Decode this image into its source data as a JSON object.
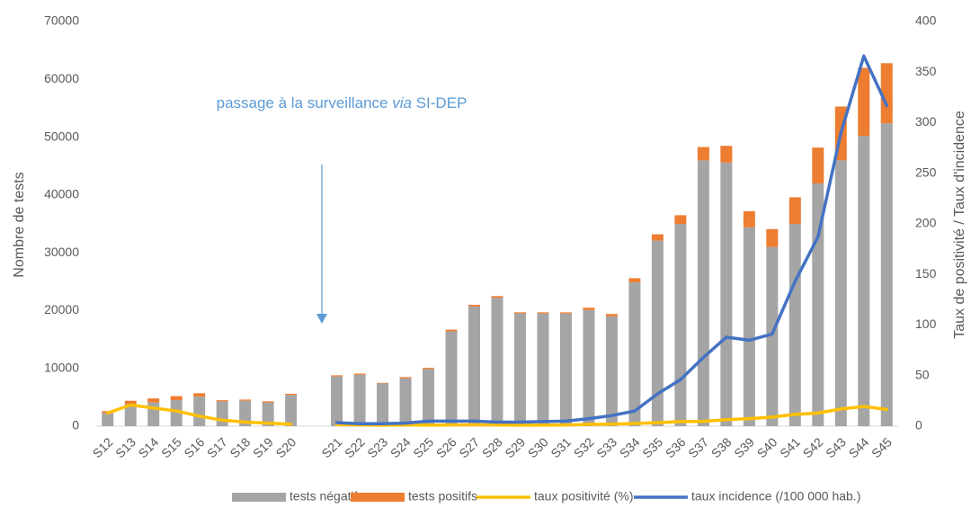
{
  "chart_data": {
    "type": "bar",
    "annotation": [
      "passage à la surveillance ",
      "via",
      " SI-DEP"
    ],
    "y_label": "Nombre de tests",
    "y2_label": "Taux de positivité / Taux d'incidence",
    "categories": [
      "S12",
      "S13",
      "S14",
      "S15",
      "S16",
      "S17",
      "S18",
      "S19",
      "S20",
      null,
      "S21",
      "S22",
      "S23",
      "S24",
      "S25",
      "S26",
      "S27",
      "S28",
      "S29",
      "S30",
      "S31",
      "S32",
      "S33",
      "S34",
      "S35",
      "S36",
      "S37",
      "S38",
      "S39",
      "S40",
      "S41",
      "S42",
      "S43",
      "S44",
      "S45"
    ],
    "series": [
      {
        "name": "tests négatifs",
        "type": "bar",
        "color": "#a5a5a5",
        "values": [
          2300,
          3800,
          4100,
          4500,
          5100,
          4300,
          4400,
          4100,
          5400,
          null,
          8600,
          8900,
          7400,
          8300,
          9900,
          16400,
          20700,
          22200,
          19500,
          19500,
          19500,
          20100,
          19000,
          24900,
          32100,
          35000,
          46000,
          45600,
          34400,
          31000,
          35000,
          42000,
          46000,
          50200,
          52400
        ]
      },
      {
        "name": "tests positifs",
        "type": "bar",
        "color": "#ed7d31",
        "values": [
          300,
          600,
          700,
          700,
          600,
          200,
          200,
          200,
          200,
          null,
          200,
          200,
          100,
          200,
          200,
          300,
          300,
          300,
          200,
          200,
          200,
          400,
          400,
          700,
          1100,
          1500,
          2300,
          2900,
          2800,
          3100,
          4600,
          6200,
          9300,
          11800,
          10400
        ]
      },
      {
        "name": "taux positivité (%)",
        "type": "line",
        "axis": "y2",
        "color": "#ffc000",
        "values": [
          13,
          21,
          18,
          15,
          10,
          6,
          4,
          3,
          2,
          null,
          1.5,
          1.2,
          1.0,
          1.2,
          1.0,
          1.2,
          1.3,
          1.2,
          1.0,
          1.0,
          1.2,
          1.8,
          2.0,
          2.7,
          3.5,
          4.5,
          4.8,
          6.5,
          7.5,
          9.0,
          11.6,
          13,
          17,
          19.5,
          16.5
        ]
      },
      {
        "name": "taux incidence (/100 000 hab.)",
        "type": "line",
        "axis": "y2",
        "color": "#4472c4",
        "values": [
          null,
          null,
          null,
          null,
          null,
          null,
          null,
          null,
          null,
          null,
          3.5,
          2.5,
          2.5,
          3,
          5,
          5,
          5,
          4,
          4,
          4.5,
          5,
          7.5,
          10.5,
          15,
          32,
          46,
          68,
          88,
          85,
          91,
          143,
          187,
          290,
          366,
          317
        ]
      }
    ],
    "ylim": [
      0,
      70000
    ],
    "yticks": [
      0,
      10000,
      20000,
      30000,
      40000,
      50000,
      60000,
      70000
    ],
    "y2lim": [
      0,
      400
    ],
    "y2ticks": [
      0,
      50,
      100,
      150,
      200,
      250,
      300,
      350,
      400
    ],
    "grid": false,
    "legend": "bottom"
  }
}
